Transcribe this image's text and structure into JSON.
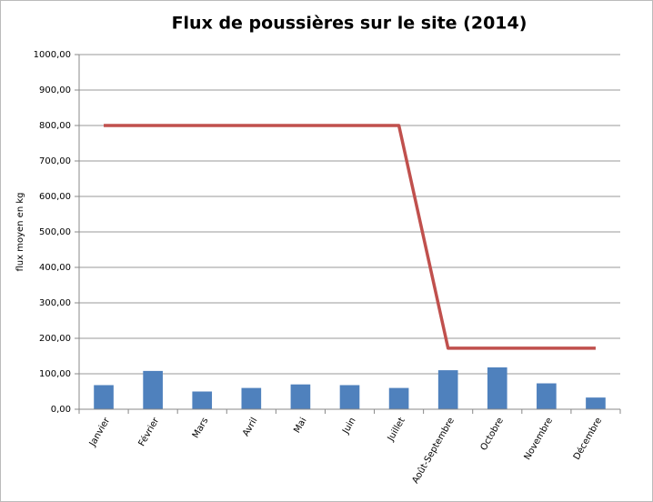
{
  "chart_data": {
    "type": "bar",
    "title": "Flux de poussières sur le site (2014)",
    "y_label": "flux moyen en kg",
    "categories": [
      "Janvier",
      "Février",
      "Mars",
      "Avril",
      "Mai",
      "Juin",
      "Juillet",
      "Août-Septembre",
      "Octobre",
      "Novembre",
      "Décembre"
    ],
    "series": [
      {
        "type": "bar",
        "color": "#4f81bd",
        "values": [
          68,
          108,
          50,
          60,
          70,
          68,
          60,
          110,
          118,
          73,
          33
        ]
      },
      {
        "type": "line",
        "color": "#c0504d",
        "values": [
          800,
          800,
          800,
          800,
          800,
          800,
          800,
          172,
          172,
          172,
          172
        ]
      }
    ],
    "ylim": [
      0,
      1000
    ],
    "yticks": [
      {
        "value": 0,
        "label": "0,00"
      },
      {
        "value": 100,
        "label": "100,00"
      },
      {
        "value": 200,
        "label": "200,00"
      },
      {
        "value": 300,
        "label": "300,00"
      },
      {
        "value": 400,
        "label": "400,00"
      },
      {
        "value": 500,
        "label": "500,00"
      },
      {
        "value": 600,
        "label": "600,00"
      },
      {
        "value": 700,
        "label": "700,00"
      },
      {
        "value": 800,
        "label": "800,00"
      },
      {
        "value": 900,
        "label": "900,00"
      },
      {
        "value": 1000,
        "label": "1000,00"
      }
    ],
    "grid": true
  }
}
